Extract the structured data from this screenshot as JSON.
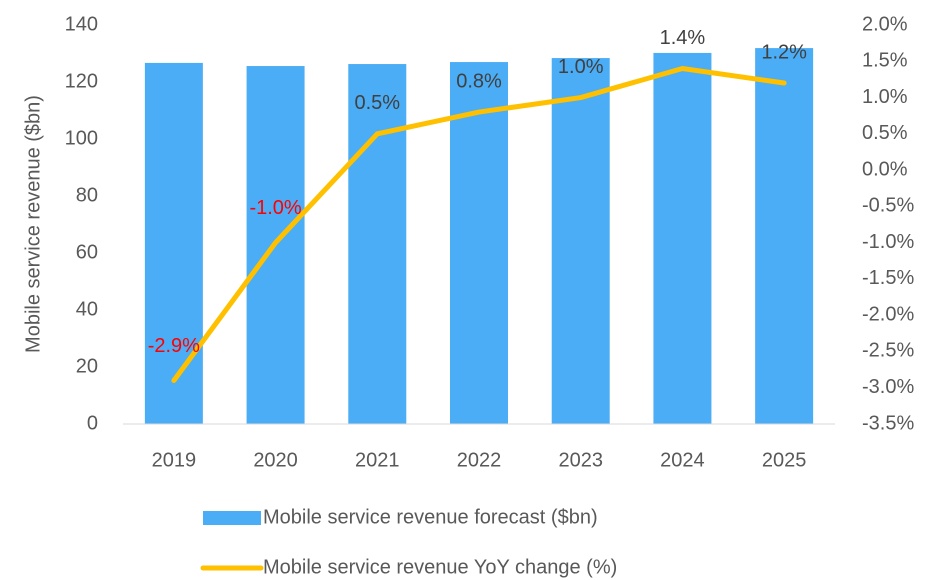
{
  "chart_data": {
    "type": "bar",
    "y_label": "Mobile service revenue ($bn)",
    "categories": [
      "2019",
      "2020",
      "2021",
      "2022",
      "2023",
      "2024",
      "2025"
    ],
    "series": [
      {
        "name": "Mobile service revenue forecast ($bn)",
        "type": "bar",
        "color": "#4badf5",
        "values": [
          126.7,
          125.6,
          126.3,
          127,
          128.4,
          130.2,
          131.9
        ]
      },
      {
        "name": "Mobile service revenue YoY change (%)",
        "type": "line",
        "axis": "y2",
        "color": "#ffc000",
        "values": [
          -2.9,
          -1.0,
          0.5,
          0.8,
          1.0,
          1.4,
          1.2
        ],
        "value_labels": [
          "-2.9%",
          "-1.0%",
          "0.5%",
          "0.8%",
          "1.0%",
          "1.4%",
          "1.2%"
        ]
      }
    ],
    "ylim": [
      0,
      140
    ],
    "yticks": [
      0,
      20,
      40,
      60,
      80,
      100,
      120,
      140
    ],
    "y2lim": [
      -3.5,
      2.0
    ],
    "y2ticks": [
      {
        "value": 2.0,
        "label": "2.0%"
      },
      {
        "value": 1.5,
        "label": "1.5%"
      },
      {
        "value": 1.0,
        "label": "1.0%"
      },
      {
        "value": 0.5,
        "label": "0.5%"
      },
      {
        "value": 0.0,
        "label": "0.0%"
      },
      {
        "value": -0.5,
        "label": "-0.5%"
      },
      {
        "value": -1.0,
        "label": "-1.0%"
      },
      {
        "value": -1.5,
        "label": "-1.5%"
      },
      {
        "value": -2.0,
        "label": "-2.0%"
      },
      {
        "value": -2.5,
        "label": "-2.5%"
      },
      {
        "value": -3.0,
        "label": "-3.0%"
      },
      {
        "value": -3.5,
        "label": "-3.5%"
      }
    ],
    "grid": false,
    "legend": "bottom"
  }
}
